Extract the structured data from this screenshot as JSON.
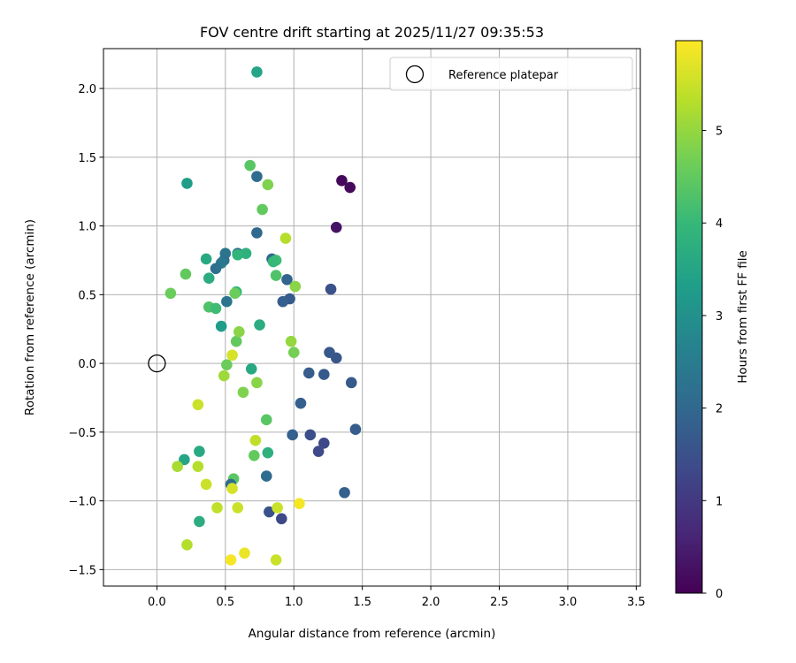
{
  "chart_data": {
    "type": "scatter",
    "title": "FOV centre drift starting at 2025/11/27 09:35:53",
    "xlabel": "Angular distance from reference (arcmin)",
    "ylabel": "Rotation from reference (arcmin)",
    "xlim": [
      -0.39,
      3.53
    ],
    "ylim": [
      -1.62,
      2.29
    ],
    "xticks": [
      0.0,
      0.5,
      1.0,
      1.5,
      2.0,
      2.5,
      3.0,
      3.5
    ],
    "xtick_labels": [
      "0.0",
      "0.5",
      "1.0",
      "1.5",
      "2.0",
      "2.5",
      "3.0",
      "3.5"
    ],
    "yticks": [
      -1.5,
      -1.0,
      -0.5,
      0.0,
      0.5,
      1.0,
      1.5,
      2.0
    ],
    "ytick_labels": [
      "−1.5",
      "−1.0",
      "−0.5",
      "0.0",
      "0.5",
      "1.0",
      "1.5",
      "2.0"
    ],
    "grid": true,
    "legend": {
      "label": "Reference platepar",
      "placement": "top-right"
    },
    "reference_point": {
      "x": 0.0,
      "y": 0.0
    },
    "colorbar": {
      "label": "Hours from first FF file",
      "min": 0,
      "max": 5.97,
      "ticks": [
        0,
        1,
        2,
        3,
        4,
        5
      ],
      "tick_labels": [
        "0",
        "1",
        "2",
        "3",
        "4",
        "5"
      ],
      "colormap_stops": [
        "#440154",
        "#482878",
        "#3e4989",
        "#31688e",
        "#26828e",
        "#1f9e89",
        "#35b779",
        "#6ece58",
        "#b5de2b",
        "#fde725"
      ]
    },
    "points": [
      {
        "x": 1.35,
        "y": 1.33,
        "h": 0.1
      },
      {
        "x": 1.41,
        "y": 1.28,
        "h": 0.15
      },
      {
        "x": 1.31,
        "y": 0.99,
        "h": 0.3
      },
      {
        "x": 1.27,
        "y": 0.54,
        "h": 1.5
      },
      {
        "x": 1.31,
        "y": 0.04,
        "h": 1.6
      },
      {
        "x": 1.26,
        "y": 0.08,
        "h": 1.65
      },
      {
        "x": 1.42,
        "y": -0.14,
        "h": 1.7
      },
      {
        "x": 1.45,
        "y": -0.48,
        "h": 1.75
      },
      {
        "x": 1.37,
        "y": -0.94,
        "h": 1.8
      },
      {
        "x": 1.22,
        "y": -0.58,
        "h": 1.3
      },
      {
        "x": 1.18,
        "y": -0.64,
        "h": 1.35
      },
      {
        "x": 1.12,
        "y": -0.52,
        "h": 1.45
      },
      {
        "x": 1.22,
        "y": -0.08,
        "h": 1.7
      },
      {
        "x": 1.11,
        "y": -0.07,
        "h": 1.75
      },
      {
        "x": 1.05,
        "y": -0.29,
        "h": 1.8
      },
      {
        "x": 0.99,
        "y": -0.52,
        "h": 1.85
      },
      {
        "x": 0.91,
        "y": -1.13,
        "h": 1.3
      },
      {
        "x": 0.82,
        "y": -1.08,
        "h": 1.5
      },
      {
        "x": 0.8,
        "y": -0.82,
        "h": 2.1
      },
      {
        "x": 0.97,
        "y": 0.47,
        "h": 1.7
      },
      {
        "x": 0.92,
        "y": 0.45,
        "h": 1.8
      },
      {
        "x": 0.95,
        "y": 0.61,
        "h": 1.9
      },
      {
        "x": 0.84,
        "y": 0.76,
        "h": 2.0
      },
      {
        "x": 0.73,
        "y": 0.95,
        "h": 2.0
      },
      {
        "x": 0.73,
        "y": 1.36,
        "h": 2.1
      },
      {
        "x": 0.59,
        "y": 0.8,
        "h": 2.1
      },
      {
        "x": 0.5,
        "y": 0.8,
        "h": 2.3
      },
      {
        "x": 0.49,
        "y": 0.75,
        "h": 2.2
      },
      {
        "x": 0.47,
        "y": 0.73,
        "h": 2.4
      },
      {
        "x": 0.43,
        "y": 0.69,
        "h": 2.2
      },
      {
        "x": 0.51,
        "y": 0.45,
        "h": 2.3
      },
      {
        "x": 0.73,
        "y": 2.12,
        "h": 3.5
      },
      {
        "x": 0.22,
        "y": 1.31,
        "h": 3.3
      },
      {
        "x": 0.36,
        "y": 0.76,
        "h": 3.6
      },
      {
        "x": 0.38,
        "y": 0.62,
        "h": 3.7
      },
      {
        "x": 0.65,
        "y": 0.8,
        "h": 3.8
      },
      {
        "x": 0.59,
        "y": 0.79,
        "h": 3.9
      },
      {
        "x": 0.58,
        "y": 0.52,
        "h": 3.9
      },
      {
        "x": 0.47,
        "y": 0.27,
        "h": 3.3
      },
      {
        "x": 0.75,
        "y": 0.28,
        "h": 3.7
      },
      {
        "x": 0.69,
        "y": -0.04,
        "h": 3.6
      },
      {
        "x": 0.81,
        "y": -0.65,
        "h": 3.8
      },
      {
        "x": 0.2,
        "y": -0.7,
        "h": 3.5
      },
      {
        "x": 0.31,
        "y": -0.64,
        "h": 3.6
      },
      {
        "x": 0.31,
        "y": -1.15,
        "h": 3.7
      },
      {
        "x": 0.56,
        "y": -0.84,
        "h": 4.4
      },
      {
        "x": 0.54,
        "y": -0.88,
        "h": 2.1
      },
      {
        "x": 0.87,
        "y": 0.75,
        "h": 4.1
      },
      {
        "x": 0.85,
        "y": 0.74,
        "h": 4.0
      },
      {
        "x": 0.87,
        "y": 0.64,
        "h": 4.3
      },
      {
        "x": 0.77,
        "y": 1.12,
        "h": 4.5
      },
      {
        "x": 0.68,
        "y": 1.44,
        "h": 4.4
      },
      {
        "x": 0.81,
        "y": 1.3,
        "h": 4.8
      },
      {
        "x": 0.38,
        "y": 0.41,
        "h": 4.3
      },
      {
        "x": 0.43,
        "y": 0.4,
        "h": 4.1
      },
      {
        "x": 0.21,
        "y": 0.65,
        "h": 4.5
      },
      {
        "x": 0.1,
        "y": 0.51,
        "h": 4.6
      },
      {
        "x": 0.57,
        "y": 0.51,
        "h": 4.6
      },
      {
        "x": 0.58,
        "y": 0.16,
        "h": 4.5
      },
      {
        "x": 0.6,
        "y": 0.23,
        "h": 4.9
      },
      {
        "x": 0.51,
        "y": -0.01,
        "h": 4.6
      },
      {
        "x": 0.49,
        "y": -0.09,
        "h": 5.1
      },
      {
        "x": 0.73,
        "y": -0.14,
        "h": 4.9
      },
      {
        "x": 0.63,
        "y": -0.21,
        "h": 4.8
      },
      {
        "x": 0.8,
        "y": -0.41,
        "h": 4.4
      },
      {
        "x": 0.71,
        "y": -0.67,
        "h": 4.5
      },
      {
        "x": 0.98,
        "y": 0.16,
        "h": 5.0
      },
      {
        "x": 1.0,
        "y": 0.08,
        "h": 4.7
      },
      {
        "x": 1.01,
        "y": 0.56,
        "h": 4.9
      },
      {
        "x": 0.94,
        "y": 0.91,
        "h": 5.3
      },
      {
        "x": 0.55,
        "y": 0.06,
        "h": 5.6
      },
      {
        "x": 0.3,
        "y": -0.3,
        "h": 5.5
      },
      {
        "x": 0.72,
        "y": -0.56,
        "h": 5.4
      },
      {
        "x": 0.15,
        "y": -0.75,
        "h": 5.2
      },
      {
        "x": 0.3,
        "y": -0.75,
        "h": 5.3
      },
      {
        "x": 0.36,
        "y": -0.88,
        "h": 5.5
      },
      {
        "x": 0.55,
        "y": -0.91,
        "h": 5.6
      },
      {
        "x": 0.44,
        "y": -1.05,
        "h": 5.4
      },
      {
        "x": 0.59,
        "y": -1.05,
        "h": 5.5
      },
      {
        "x": 0.88,
        "y": -1.05,
        "h": 5.5
      },
      {
        "x": 1.04,
        "y": -1.02,
        "h": 5.9
      },
      {
        "x": 0.22,
        "y": -1.32,
        "h": 5.3
      },
      {
        "x": 0.64,
        "y": -1.38,
        "h": 5.8
      },
      {
        "x": 0.54,
        "y": -1.43,
        "h": 5.9
      },
      {
        "x": 0.87,
        "y": -1.43,
        "h": 5.5
      }
    ]
  }
}
